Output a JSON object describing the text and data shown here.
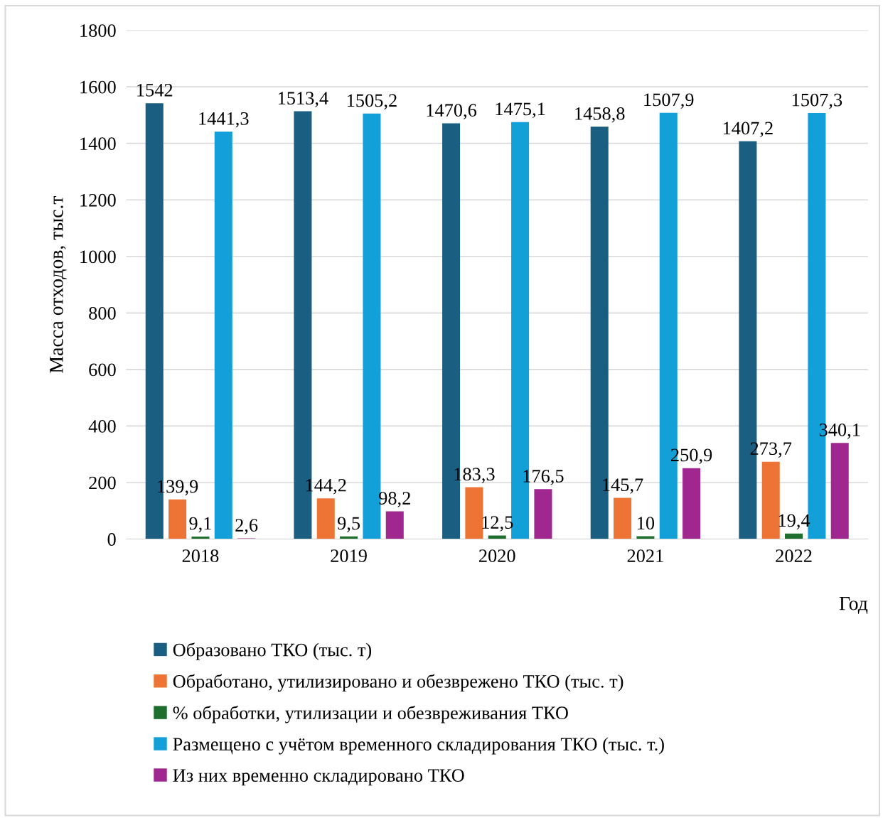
{
  "chart_data": {
    "type": "bar",
    "xlabel": "Год",
    "ylabel": "Масса отходов, тыс.т",
    "categories": [
      "2018",
      "2019",
      "2020",
      "2021",
      "2022"
    ],
    "series": [
      {
        "name": "Образовано ТКО (тыс. т)",
        "color": "#1a5e82",
        "values": [
          1542,
          1513.4,
          1470.6,
          1458.8,
          1407.2
        ],
        "value_labels": [
          "1542",
          "1513,4",
          "1470,6",
          "1458,8",
          "1407,2"
        ]
      },
      {
        "name": "Обработано, утилизировано и обезврежено ТКО (тыс. т)",
        "color": "#ed7434",
        "values": [
          139.9,
          144.2,
          183.3,
          145.7,
          273.7
        ],
        "value_labels": [
          "139,9",
          "144,2",
          "183,3",
          "145,7",
          "273,7"
        ]
      },
      {
        "name": "% обработки, утилизации и обезвреживания ТКО",
        "color": "#1e6e2e",
        "values": [
          9.1,
          9.5,
          12.5,
          10,
          19.4
        ],
        "value_labels": [
          "9,1",
          "9,5",
          "12,5",
          "10",
          "19,4"
        ]
      },
      {
        "name": "Размещено с учётом временного складирования ТКО (тыс. т.)",
        "color": "#139fd8",
        "values": [
          1441.3,
          1505.2,
          1475.1,
          1507.9,
          1507.3
        ],
        "value_labels": [
          "1441,3",
          "1505,2",
          "1475,1",
          "1507,9",
          "1507,3"
        ]
      },
      {
        "name": "Из них временно складировано ТКО",
        "color": "#a0278f",
        "values": [
          2.6,
          98.2,
          176.5,
          250.9,
          340.1
        ],
        "value_labels": [
          "2,6",
          "98,2",
          "176,5",
          "250,9",
          "340,1"
        ]
      }
    ],
    "ylim": [
      0,
      1800
    ],
    "yticks": [
      0,
      200,
      400,
      600,
      800,
      1000,
      1200,
      1400,
      1600,
      1800
    ],
    "grid": "y",
    "legend": "bottom"
  }
}
